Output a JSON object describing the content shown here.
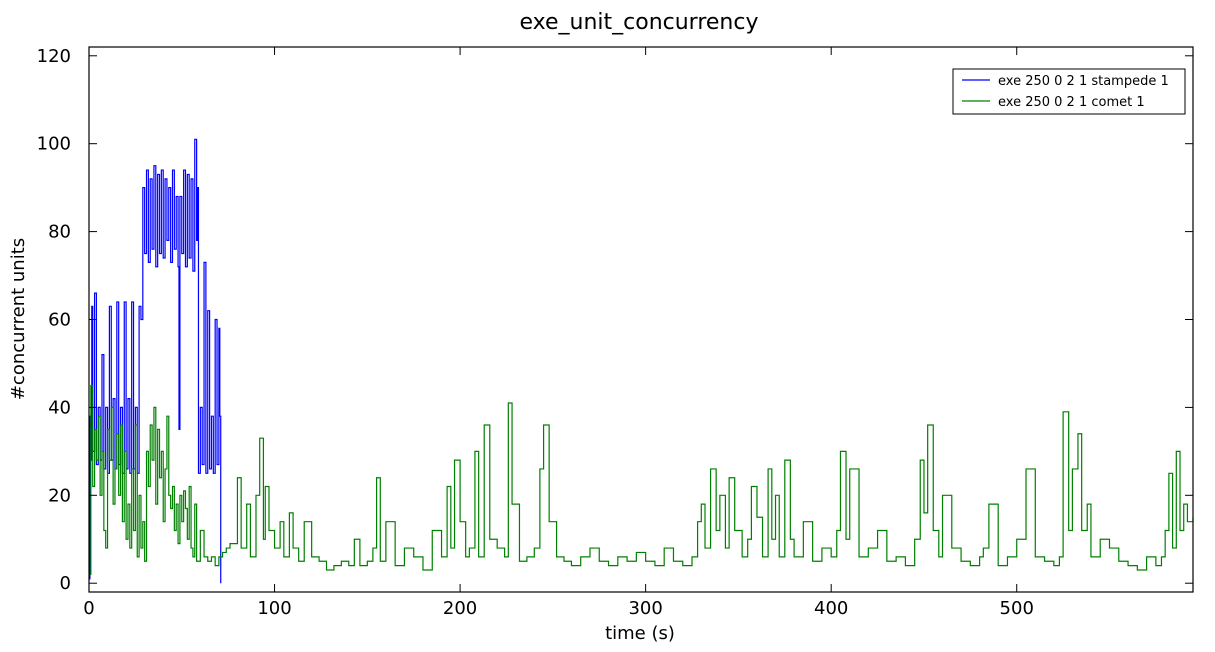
{
  "chart_data": {
    "type": "line",
    "title": "exe_unit_concurrency",
    "xlabel": "time (s)",
    "ylabel": "#concurrent units",
    "xlim": [
      0,
      595
    ],
    "ylim": [
      -2,
      122
    ],
    "xticks": [
      0,
      100,
      200,
      300,
      400,
      500
    ],
    "yticks": [
      0,
      20,
      40,
      60,
      80,
      100,
      120
    ],
    "grid": false,
    "legend_position": "top-right",
    "series": [
      {
        "name": "exe 250 0 2 1 stampede 1",
        "color": "#0000ff",
        "x": [
          0,
          0.5,
          1,
          1.5,
          2,
          3,
          4,
          5,
          6,
          7,
          8,
          9,
          10,
          11,
          12,
          13,
          14,
          15,
          16,
          17,
          18,
          19,
          20,
          21,
          22,
          23,
          24,
          25,
          26,
          27,
          28,
          29,
          30,
          31,
          32,
          33,
          34,
          35,
          36,
          37,
          38,
          39,
          40,
          41,
          42,
          43,
          44,
          45,
          46,
          47,
          48,
          48.5,
          49,
          50,
          51,
          52,
          53,
          54,
          55,
          56,
          57,
          58,
          58.5,
          59,
          60,
          61,
          62,
          63,
          64,
          65,
          66,
          67,
          68,
          69,
          70,
          70.5,
          71
        ],
        "y": [
          1,
          38,
          28,
          63,
          30,
          66,
          27,
          40,
          28,
          52,
          26,
          40,
          25,
          63,
          28,
          42,
          26,
          64,
          27,
          40,
          25,
          64,
          26,
          42,
          25,
          64,
          26,
          40,
          25,
          63,
          60,
          90,
          75,
          94,
          73,
          92,
          76,
          95,
          72,
          93,
          75,
          94,
          74,
          92,
          78,
          90,
          73,
          94,
          76,
          88,
          72,
          35,
          88,
          75,
          94,
          72,
          93,
          74,
          92,
          71,
          101,
          78,
          90,
          25,
          40,
          27,
          73,
          25,
          62,
          26,
          38,
          25,
          60,
          27,
          58,
          38,
          0
        ]
      },
      {
        "name": "exe 250 0 2 1 comet 1",
        "color": "#008000",
        "x": [
          0,
          1,
          2,
          3,
          4,
          5,
          6,
          7,
          8,
          9,
          10,
          11,
          12,
          13,
          14,
          15,
          16,
          17,
          18,
          19,
          20,
          21,
          22,
          23,
          24,
          25,
          26,
          27,
          28,
          29,
          30,
          31,
          32,
          33,
          34,
          35,
          36,
          37,
          38,
          39,
          40,
          41,
          42,
          43,
          44,
          45,
          46,
          47,
          48,
          49,
          50,
          51,
          52,
          53,
          54,
          55,
          56,
          57,
          58,
          59,
          60,
          62,
          64,
          66,
          68,
          70,
          72,
          74,
          76,
          78,
          80,
          82,
          85,
          87,
          90,
          92,
          94,
          95,
          97,
          100,
          103,
          105,
          108,
          110,
          113,
          116,
          120,
          124,
          128,
          132,
          136,
          140,
          143,
          146,
          150,
          153,
          155,
          157,
          160,
          165,
          170,
          175,
          180,
          185,
          190,
          193,
          195,
          197,
          200,
          203,
          205,
          208,
          210,
          213,
          216,
          220,
          224,
          226,
          228,
          232,
          236,
          240,
          243,
          245,
          248,
          252,
          256,
          260,
          265,
          270,
          275,
          280,
          285,
          290,
          295,
          300,
          305,
          310,
          315,
          320,
          325,
          328,
          330,
          332,
          335,
          338,
          340,
          343,
          345,
          348,
          352,
          355,
          357,
          360,
          363,
          366,
          368,
          370,
          372,
          375,
          378,
          380,
          385,
          390,
          395,
          400,
          403,
          405,
          408,
          410,
          415,
          420,
          425,
          430,
          435,
          440,
          445,
          448,
          450,
          452,
          455,
          458,
          460,
          465,
          470,
          475,
          480,
          482,
          485,
          490,
          495,
          500,
          505,
          510,
          515,
          520,
          523,
          525,
          528,
          530,
          533,
          535,
          538,
          540,
          545,
          550,
          555,
          560,
          565,
          570,
          575,
          578,
          580,
          582,
          584,
          586,
          588,
          590,
          592,
          595
        ],
        "y": [
          2,
          45,
          22,
          35,
          28,
          38,
          20,
          30,
          12,
          8,
          35,
          28,
          40,
          18,
          26,
          34,
          20,
          36,
          14,
          30,
          10,
          18,
          8,
          26,
          12,
          36,
          6,
          20,
          8,
          14,
          5,
          30,
          22,
          36,
          28,
          40,
          18,
          35,
          24,
          30,
          14,
          26,
          38,
          20,
          17,
          22,
          12,
          18,
          9,
          20,
          14,
          21,
          17,
          10,
          22,
          8,
          6,
          18,
          5,
          5,
          12,
          6,
          5,
          6,
          4,
          6,
          7,
          8,
          9,
          9,
          24,
          8,
          18,
          6,
          20,
          33,
          10,
          22,
          12,
          8,
          14,
          6,
          16,
          8,
          5,
          14,
          6,
          5,
          3,
          4,
          5,
          4,
          10,
          4,
          5,
          8,
          24,
          5,
          14,
          4,
          8,
          6,
          3,
          12,
          6,
          22,
          8,
          28,
          14,
          6,
          8,
          30,
          6,
          36,
          10,
          8,
          6,
          41,
          18,
          5,
          6,
          8,
          26,
          36,
          14,
          6,
          5,
          4,
          6,
          8,
          5,
          4,
          6,
          5,
          7,
          5,
          4,
          8,
          5,
          4,
          6,
          14,
          18,
          8,
          26,
          12,
          20,
          8,
          24,
          12,
          6,
          10,
          22,
          15,
          6,
          26,
          10,
          20,
          6,
          28,
          10,
          6,
          14,
          5,
          8,
          6,
          12,
          30,
          10,
          26,
          6,
          8,
          12,
          5,
          6,
          4,
          10,
          28,
          16,
          36,
          12,
          6,
          20,
          8,
          5,
          4,
          6,
          8,
          18,
          4,
          6,
          10,
          26,
          6,
          5,
          4,
          6,
          39,
          12,
          26,
          34,
          12,
          18,
          6,
          10,
          8,
          5,
          4,
          3,
          6,
          4,
          6,
          12,
          25,
          8,
          30,
          12,
          18,
          14,
          15
        ]
      }
    ]
  }
}
